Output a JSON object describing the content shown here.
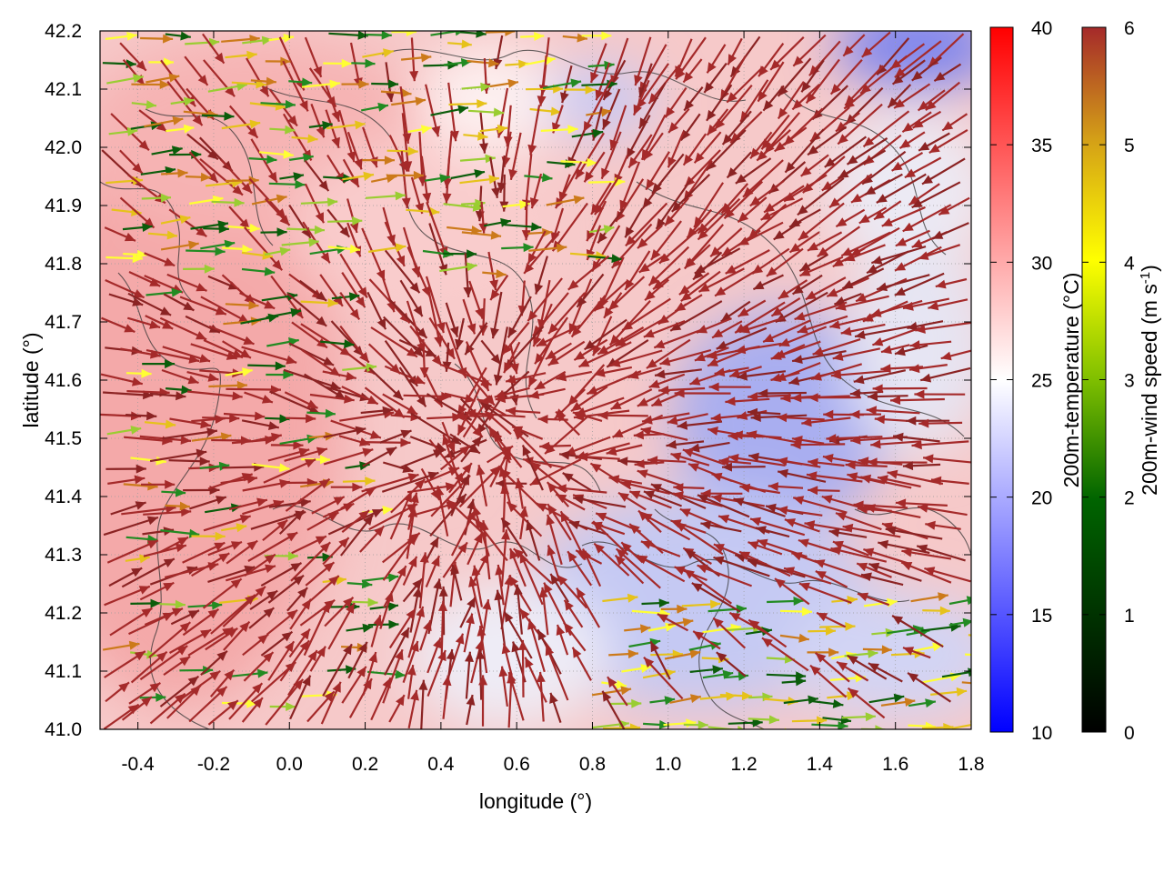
{
  "chart_data": {
    "type": "heatmap",
    "title": "",
    "xlabel": "longitude (°)",
    "ylabel": "latitude (°)",
    "xlim": [
      -0.5,
      1.8
    ],
    "ylim": [
      41.0,
      42.2
    ],
    "x_ticks": [
      "-0.4",
      "-0.2",
      "0.0",
      "0.2",
      "0.4",
      "0.6",
      "0.8",
      "1.0",
      "1.2",
      "1.4",
      "1.6",
      "1.8"
    ],
    "y_ticks": [
      "41.0",
      "41.1",
      "41.2",
      "41.3",
      "41.4",
      "41.5",
      "41.6",
      "41.7",
      "41.8",
      "41.9",
      "42.0",
      "42.1",
      "42.2"
    ],
    "grid": true,
    "temperature_colorbar": {
      "label": "200m-temperature (°C)",
      "range": [
        10,
        40
      ],
      "ticks": [
        "10",
        "15",
        "20",
        "25",
        "30",
        "35",
        "40"
      ],
      "colors": [
        "#0000ff",
        "#ffffff",
        "#ff0000"
      ]
    },
    "wind_colorbar": {
      "label": "200m-wind speed (m s-1)",
      "label_main": "200m-wind speed (m s",
      "label_sup": "-1",
      "label_end": ")",
      "range": [
        0,
        6
      ],
      "ticks": [
        "0",
        "1",
        "2",
        "3",
        "4",
        "5",
        "6"
      ],
      "colors": [
        "#000000",
        "#006400",
        "#7fbf00",
        "#ffff00",
        "#d4a017",
        "#a52a2a"
      ]
    },
    "temperature_regions": [
      {
        "area": "west (lon -0.5 to 0.3)",
        "value_c": 31
      },
      {
        "area": "north-central (lon 0.3 to 0.9, lat 41.8 to 42.2)",
        "value_c": 29
      },
      {
        "area": "center (lon 0.3 to 0.9, lat 41.3 to 41.8)",
        "value_c": 28
      },
      {
        "area": "northeast corner (lon 1.5 to 1.8, lat 42.0 to 42.2)",
        "value_c": 18
      },
      {
        "area": "southeast (lon 0.9 to 1.6, lat 41.1 to 41.5)",
        "value_c": 20
      },
      {
        "area": "east (lon 1.4 to 1.8, lat 41.5 to 41.9)",
        "value_c": 23
      }
    ],
    "wind_field": {
      "description": "vectors converge toward an inland low near lon 0.5, lat 41.5; strongest flow (6 m/s) dominates; weaker easterly-directed winds in northwest and southeast",
      "convergence_center": [
        0.5,
        41.5
      ],
      "max_speed": 6
    }
  }
}
